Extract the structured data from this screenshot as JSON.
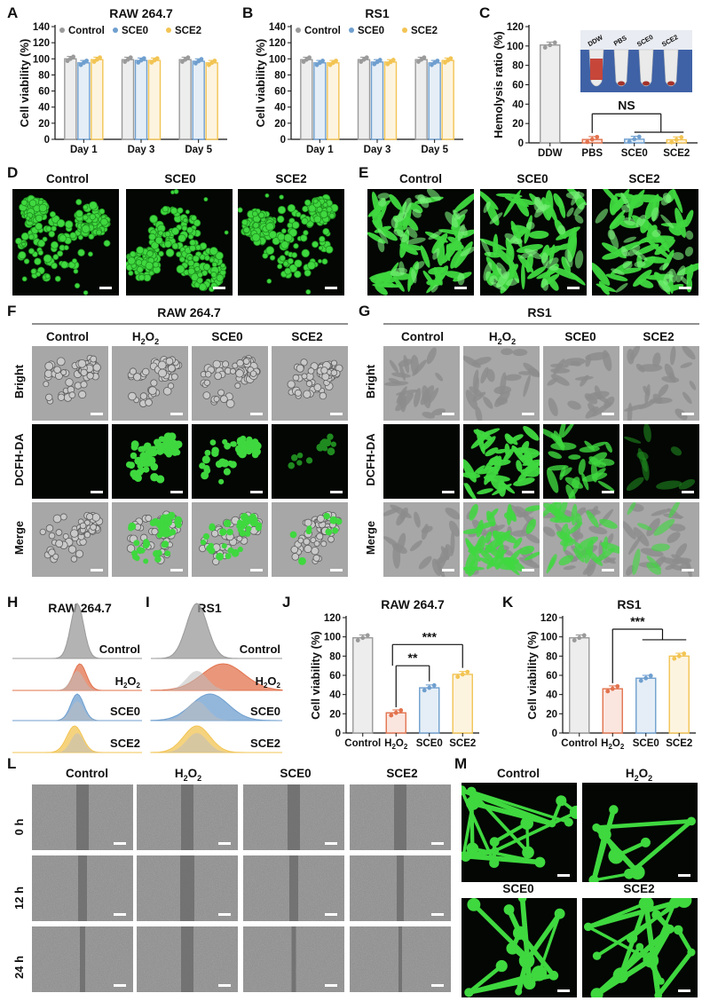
{
  "colors": {
    "control": "#9a9a9a",
    "h2o2": "#e2734e",
    "sce0": "#6f9fcf",
    "sce2": "#f2c453",
    "fluor_bg": "#030603",
    "green": "#3fd83f",
    "bright_bg": "#a7a7a7",
    "wound_bg": "#7b7b7b",
    "inset_bg": "#3f62a6"
  },
  "panels": {
    "A": "A",
    "B": "B",
    "C": "C",
    "D": "D",
    "E": "E",
    "F": "F",
    "G": "G",
    "H": "H",
    "I": "I",
    "J": "J",
    "K": "K",
    "L": "L",
    "M": "M"
  },
  "legend": [
    "Control",
    "SCE0",
    "SCE2"
  ],
  "cells": {
    "raw": "RAW 264.7",
    "rs1": "RS1"
  },
  "conditions": {
    "control": "Control",
    "h2o2_main": "H",
    "h2o2_sub": "2",
    "h2o2_tail": "O",
    "h2o2_sub2": "2",
    "sce0": "SCE0",
    "sce2": "SCE2"
  },
  "rows": {
    "bright": "Bright",
    "dcfh": "DCFH-DA",
    "merge": "Merge"
  },
  "times": [
    "0 h",
    "12 h",
    "24 h"
  ],
  "chart_data": [
    {
      "id": "A",
      "type": "bar",
      "title": "RAW 264.7",
      "ylabel": "Cell viability (%)",
      "categories": [
        "Day 1",
        "Day 3",
        "Day 5"
      ],
      "ylim": [
        0,
        140
      ],
      "yticks": [
        0,
        20,
        40,
        60,
        80,
        100,
        120,
        140
      ],
      "series": [
        {
          "name": "Control",
          "values": [
            100,
            99,
            99
          ]
        },
        {
          "name": "SCE0",
          "values": [
            95,
            98,
            97
          ]
        },
        {
          "name": "SCE2",
          "values": [
            99,
            98,
            95
          ]
        }
      ]
    },
    {
      "id": "B",
      "type": "bar",
      "title": "RS1",
      "ylabel": "Cell viability (%)",
      "categories": [
        "Day 1",
        "Day 3",
        "Day 5"
      ],
      "ylim": [
        0,
        140
      ],
      "yticks": [
        0,
        20,
        40,
        60,
        80,
        100,
        120,
        140
      ],
      "series": [
        {
          "name": "Control",
          "values": [
            99,
            99,
            99
          ]
        },
        {
          "name": "SCE0",
          "values": [
            95,
            96,
            95
          ]
        },
        {
          "name": "SCE2",
          "values": [
            95,
            96,
            98
          ]
        }
      ]
    },
    {
      "id": "C",
      "type": "bar",
      "ylabel": "Hemolysis ratio (%)",
      "categories": [
        "DDW",
        "PBS",
        "SCE0",
        "SCE2"
      ],
      "ylim": [
        0,
        120
      ],
      "yticks": [
        0,
        20,
        40,
        60,
        80,
        100,
        120
      ],
      "values": [
        101,
        3.5,
        3.8,
        3.2
      ],
      "annotation": "NS",
      "inset_labels": [
        "DDW",
        "PBS",
        "SCE0",
        "SCE2"
      ]
    },
    {
      "id": "J",
      "type": "bar",
      "title": "RAW 264.7",
      "ylabel": "Cell viability (%)",
      "categories": [
        "Control",
        "H2O2",
        "SCE0",
        "SCE2"
      ],
      "ylim": [
        0,
        120
      ],
      "yticks": [
        0,
        20,
        40,
        60,
        80,
        100,
        120
      ],
      "values": [
        99,
        21,
        47,
        61
      ],
      "significance": [
        "**",
        "***"
      ]
    },
    {
      "id": "K",
      "type": "bar",
      "title": "RS1",
      "ylabel": "Cell viability (%)",
      "categories": [
        "Control",
        "H2O2",
        "SCE0",
        "SCE2"
      ],
      "ylim": [
        0,
        120
      ],
      "yticks": [
        0,
        20,
        40,
        60,
        80,
        100,
        120
      ],
      "values": [
        99,
        46,
        57,
        80
      ],
      "significance": [
        "***"
      ]
    }
  ],
  "histograms": {
    "H": {
      "title": "RAW 264.7",
      "labels": [
        "Control",
        "H2O2",
        "SCE0",
        "SCE2"
      ]
    },
    "I": {
      "title": "RS1",
      "labels": [
        "Control",
        "H2O2",
        "SCE0",
        "SCE2"
      ]
    }
  }
}
